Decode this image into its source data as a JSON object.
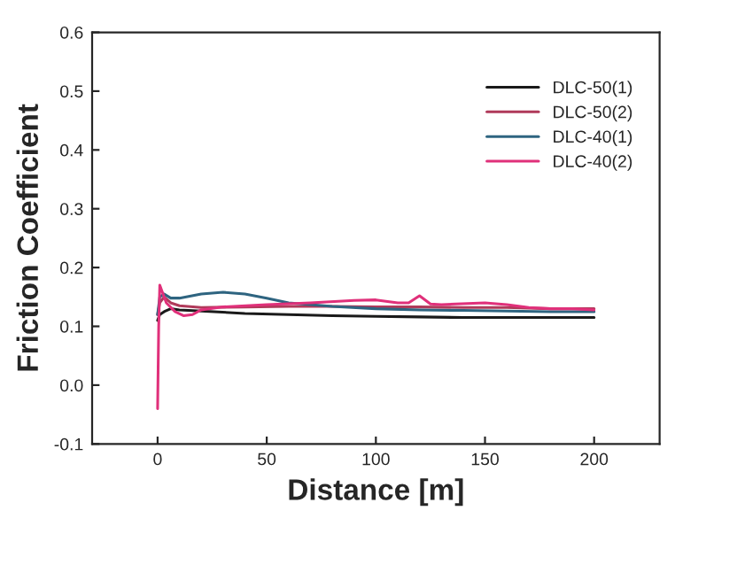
{
  "chart_data": {
    "type": "line",
    "xlabel": "Distance [m]",
    "ylabel": "Friction Coefficient",
    "xlim": [
      -30,
      230
    ],
    "ylim": [
      -0.1,
      0.6
    ],
    "xticks": [
      0,
      50,
      100,
      150,
      200
    ],
    "yticks": [
      {
        "value": -0.1,
        "label": "-0.1"
      },
      {
        "value": 0.0,
        "label": "0.0"
      },
      0.1,
      0.2,
      0.3,
      0.4,
      0.5,
      0.6
    ],
    "legend": "top right",
    "grid": false,
    "series": [
      {
        "name": "DLC-50(1)",
        "color": "#1a1a1a",
        "x": [
          0,
          1,
          3,
          6,
          10,
          20,
          40,
          60,
          80,
          100,
          120,
          140,
          160,
          180,
          200
        ],
        "values": [
          0.11,
          0.12,
          0.125,
          0.13,
          0.128,
          0.126,
          0.122,
          0.12,
          0.118,
          0.117,
          0.116,
          0.115,
          0.115,
          0.115,
          0.115
        ]
      },
      {
        "name": "DLC-50(2)",
        "color": "#b03a5a",
        "x": [
          0,
          1,
          3,
          6,
          10,
          20,
          40,
          60,
          80,
          100,
          120,
          140,
          160,
          180,
          200
        ],
        "values": [
          0.12,
          0.14,
          0.15,
          0.14,
          0.135,
          0.132,
          0.133,
          0.134,
          0.134,
          0.133,
          0.133,
          0.132,
          0.132,
          0.13,
          0.13
        ]
      },
      {
        "name": "DLC-40(1)",
        "color": "#2e6480",
        "x": [
          0,
          1,
          3,
          6,
          10,
          20,
          30,
          40,
          50,
          60,
          70,
          80,
          100,
          120,
          140,
          160,
          180,
          200
        ],
        "values": [
          0.12,
          0.15,
          0.155,
          0.148,
          0.148,
          0.155,
          0.158,
          0.155,
          0.148,
          0.14,
          0.137,
          0.134,
          0.13,
          0.128,
          0.127,
          0.126,
          0.125,
          0.125
        ]
      },
      {
        "name": "DLC-40(2)",
        "color": "#e0307a",
        "x": [
          0,
          0.5,
          1,
          2,
          4,
          8,
          12,
          16,
          20,
          30,
          50,
          70,
          90,
          100,
          110,
          115,
          120,
          125,
          130,
          150,
          160,
          170,
          180,
          190,
          200
        ],
        "values": [
          -0.04,
          0.1,
          0.17,
          0.16,
          0.14,
          0.125,
          0.118,
          0.12,
          0.128,
          0.133,
          0.137,
          0.14,
          0.144,
          0.145,
          0.14,
          0.14,
          0.152,
          0.138,
          0.137,
          0.14,
          0.137,
          0.132,
          0.13,
          0.13,
          0.128
        ]
      }
    ]
  }
}
